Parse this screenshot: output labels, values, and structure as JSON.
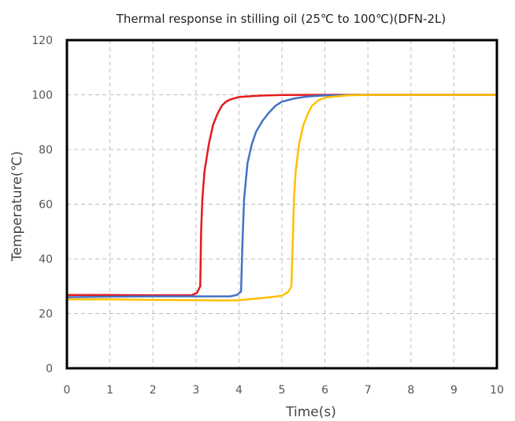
{
  "chart_data": {
    "type": "line",
    "title": "Thermal response in stilling oil (25℃ to 100℃)(DFN-2L)",
    "xlabel": "Time(s)",
    "ylabel": "Temperature(℃)",
    "xlim": [
      0,
      10
    ],
    "ylim": [
      0,
      120
    ],
    "xticks": [
      0,
      1,
      2,
      3,
      4,
      5,
      6,
      7,
      8,
      9,
      10
    ],
    "yticks": [
      0,
      20,
      40,
      60,
      80,
      100,
      120
    ],
    "grid": true,
    "legend": "none",
    "series": [
      {
        "color": "#e41a1c",
        "x": [
          0,
          1,
          2,
          2.9,
          3.02,
          3.1,
          3.12,
          3.15,
          3.2,
          3.3,
          3.4,
          3.5,
          3.6,
          3.7,
          3.8,
          4.0,
          4.5,
          5.0,
          6.0,
          7.0,
          8.0,
          9.0,
          10.0
        ],
        "y": [
          26.8,
          26.8,
          26.7,
          26.7,
          27.5,
          30,
          50,
          62,
          72,
          82,
          89,
          93,
          96,
          97.5,
          98.3,
          99.2,
          99.7,
          99.9,
          100,
          100,
          100,
          100,
          100
        ]
      },
      {
        "color": "#4472c4",
        "x": [
          0,
          1,
          2,
          3,
          3.8,
          3.95,
          4.05,
          4.08,
          4.12,
          4.2,
          4.3,
          4.4,
          4.55,
          4.7,
          4.85,
          5.0,
          5.3,
          5.6,
          6.0,
          7.0,
          8.0,
          9.0,
          10.0
        ],
        "y": [
          26,
          26.2,
          26.3,
          26.3,
          26.3,
          26.8,
          28,
          45,
          62,
          75,
          82,
          86.5,
          90.5,
          93.5,
          96,
          97.5,
          98.7,
          99.4,
          99.8,
          100,
          100,
          100,
          100
        ]
      },
      {
        "color": "#ffc000",
        "x": [
          0,
          1,
          2,
          3,
          3.5,
          3.95,
          4.5,
          5.0,
          5.15,
          5.22,
          5.25,
          5.28,
          5.32,
          5.4,
          5.5,
          5.6,
          5.7,
          5.85,
          6.0,
          6.5,
          7.0,
          8.0,
          10.0
        ],
        "y": [
          25.2,
          25.2,
          25.0,
          24.9,
          24.8,
          24.8,
          25.6,
          26.5,
          28,
          30,
          45,
          62,
          72,
          82,
          89,
          93,
          96,
          98,
          99,
          99.8,
          100,
          100,
          100
        ]
      }
    ]
  }
}
